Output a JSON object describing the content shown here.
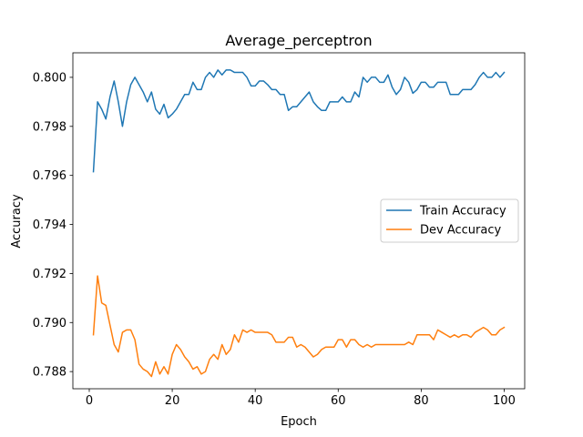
{
  "chart_data": {
    "type": "line",
    "title": "Average_perceptron",
    "xlabel": "Epoch",
    "ylabel": "Accuracy",
    "xlim": [
      -3.95,
      104.95
    ],
    "ylim": [
      0.7873,
      0.801
    ],
    "xticks": [
      0,
      20,
      40,
      60,
      80,
      100
    ],
    "yticks": [
      0.788,
      0.79,
      0.792,
      0.794,
      0.796,
      0.798,
      0.8
    ],
    "ytick_labels": [
      "0.788",
      "0.790",
      "0.792",
      "0.794",
      "0.796",
      "0.798",
      "0.800"
    ],
    "grid": false,
    "legend_position": "center-right",
    "series": [
      {
        "name": "Train Accuracy",
        "color": "#1f77b4",
        "values": [
          0.79615,
          0.799,
          0.7987,
          0.7983,
          0.7992,
          0.79985,
          0.799,
          0.798,
          0.799,
          0.7997,
          0.8,
          0.7997,
          0.7994,
          0.799,
          0.7994,
          0.7987,
          0.7985,
          0.7989,
          0.79835,
          0.7985,
          0.7987,
          0.799,
          0.7993,
          0.7993,
          0.7998,
          0.7995,
          0.7995,
          0.8,
          0.8002,
          0.8,
          0.8003,
          0.8001,
          0.8003,
          0.8003,
          0.8002,
          0.8002,
          0.8002,
          0.8,
          0.79965,
          0.79965,
          0.79985,
          0.79985,
          0.7997,
          0.7995,
          0.7995,
          0.7993,
          0.7993,
          0.79865,
          0.7988,
          0.7988,
          0.799,
          0.7992,
          0.7994,
          0.799,
          0.7988,
          0.79865,
          0.79865,
          0.799,
          0.799,
          0.799,
          0.7992,
          0.799,
          0.799,
          0.7994,
          0.7992,
          0.8,
          0.7998,
          0.8,
          0.8,
          0.7998,
          0.7998,
          0.8001,
          0.7996,
          0.7993,
          0.7995,
          0.8,
          0.7998,
          0.79935,
          0.7995,
          0.7998,
          0.7998,
          0.7996,
          0.7996,
          0.7998,
          0.7998,
          0.7998,
          0.7993,
          0.7993,
          0.7993,
          0.7995,
          0.7995,
          0.7995,
          0.7997,
          0.8,
          0.8002,
          0.8,
          0.8,
          0.8002,
          0.8,
          0.8002
        ]
      },
      {
        "name": "Dev Accuracy",
        "color": "#ff7f0e",
        "values": [
          0.7895,
          0.7919,
          0.7908,
          0.7907,
          0.7899,
          0.7891,
          0.7888,
          0.7896,
          0.7897,
          0.7897,
          0.7893,
          0.7883,
          0.7881,
          0.788,
          0.7878,
          0.7884,
          0.7879,
          0.7882,
          0.7879,
          0.7887,
          0.7891,
          0.7889,
          0.7886,
          0.7884,
          0.7881,
          0.7882,
          0.7879,
          0.788,
          0.7885,
          0.7887,
          0.7885,
          0.7891,
          0.7887,
          0.7889,
          0.7895,
          0.7892,
          0.7897,
          0.7896,
          0.7897,
          0.7896,
          0.7896,
          0.7896,
          0.7896,
          0.7895,
          0.7892,
          0.7892,
          0.7892,
          0.7894,
          0.7894,
          0.789,
          0.7891,
          0.789,
          0.7888,
          0.7886,
          0.7887,
          0.7889,
          0.789,
          0.789,
          0.789,
          0.7893,
          0.7893,
          0.789,
          0.7893,
          0.7893,
          0.7891,
          0.789,
          0.7891,
          0.789,
          0.7891,
          0.7891,
          0.7891,
          0.7891,
          0.7891,
          0.7891,
          0.7891,
          0.7891,
          0.7892,
          0.7891,
          0.7895,
          0.7895,
          0.7895,
          0.7895,
          0.7893,
          0.7897,
          0.7896,
          0.7895,
          0.7894,
          0.7895,
          0.7894,
          0.7895,
          0.7895,
          0.7894,
          0.7896,
          0.7897,
          0.7898,
          0.7897,
          0.7895,
          0.7895,
          0.7897,
          0.7898
        ]
      }
    ]
  }
}
